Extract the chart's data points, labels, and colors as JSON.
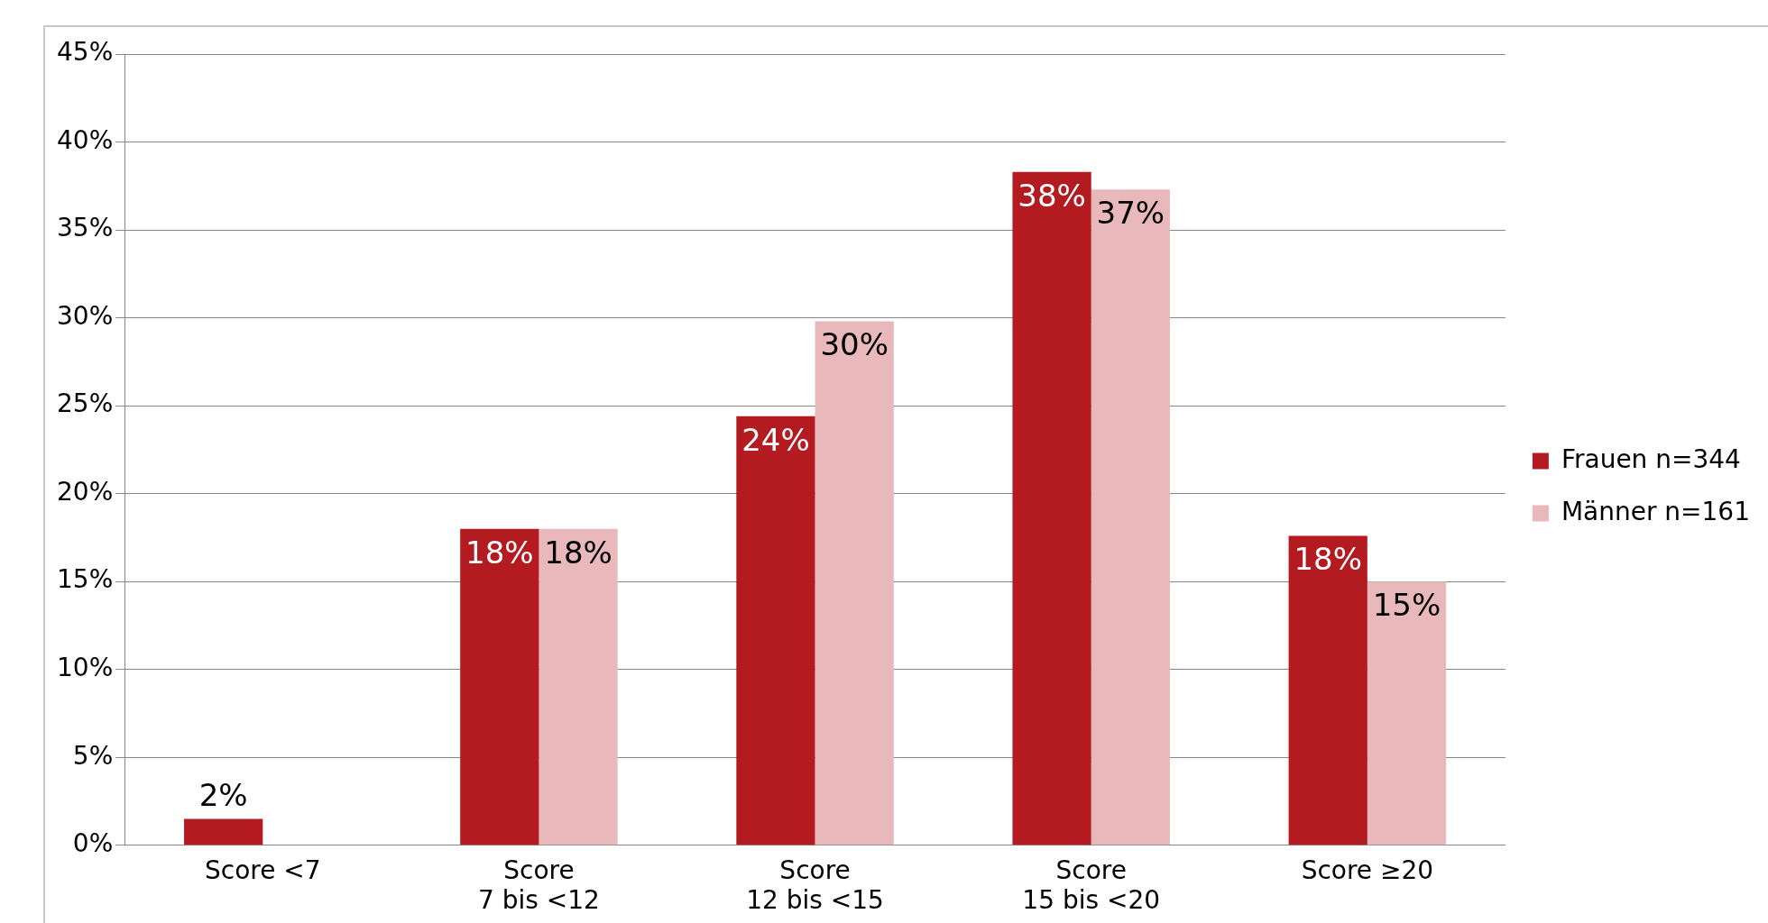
{
  "chart_data": {
    "type": "bar",
    "categories": [
      "Score <7",
      "Score 7 bis <12",
      "Score 12 bis <15",
      "Score 15 bis <20",
      "Score ≥20"
    ],
    "series": [
      {
        "name": "Frauen n=344",
        "color": "#b31b21",
        "values": [
          1.5,
          18.0,
          24.4,
          38.3,
          17.6
        ],
        "value_labels": [
          "2%",
          "18%",
          "24%",
          "38%",
          "18%"
        ]
      },
      {
        "name": "Männer n=161",
        "color": "#e8b8ba",
        "values": [
          null,
          18.0,
          29.8,
          37.3,
          15.0
        ],
        "value_labels": [
          null,
          "18%",
          "30%",
          "37%",
          "15%"
        ]
      }
    ],
    "ylim": [
      0,
      45
    ],
    "yticks": [
      {
        "value": 0,
        "label": "0%"
      },
      {
        "value": 5,
        "label": "5%"
      },
      {
        "value": 10,
        "label": "10%"
      },
      {
        "value": 15,
        "label": "15%"
      },
      {
        "value": 20,
        "label": "20%"
      },
      {
        "value": 25,
        "label": "25%"
      },
      {
        "value": 30,
        "label": "30%"
      },
      {
        "value": 35,
        "label": "35%"
      },
      {
        "value": 40,
        "label": "40%"
      },
      {
        "value": 45,
        "label": "45%"
      }
    ],
    "grid": "y",
    "legend": "right"
  }
}
